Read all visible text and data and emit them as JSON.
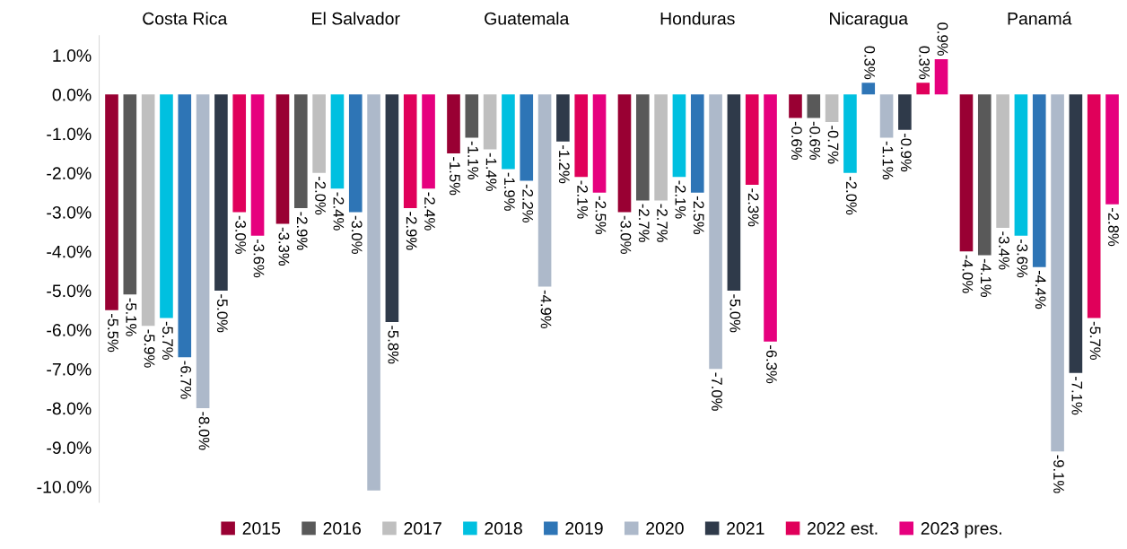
{
  "chart_data": {
    "type": "bar",
    "categories": [
      "Costa Rica",
      "El Salvador",
      "Guatemala",
      "Honduras",
      "Nicaragua",
      "Panamá"
    ],
    "series": [
      {
        "name": "2015",
        "color": "#990033",
        "values": [
          -5.5,
          -3.3,
          -1.5,
          -3.0,
          -0.6,
          -4.0
        ],
        "value_labels": [
          "-5.5%",
          "-3.3%",
          "-1.5%",
          "-3.0%",
          "-0.6%",
          "-4.0%"
        ]
      },
      {
        "name": "2016",
        "color": "#595959",
        "values": [
          -5.1,
          -2.9,
          -1.1,
          -2.7,
          -0.6,
          -4.1
        ],
        "value_labels": [
          "-5.1%",
          "-2.9%",
          "-1.1%",
          "-2.7%",
          "-0.6%",
          "-4.1%"
        ]
      },
      {
        "name": "2017",
        "color": "#bfbfbf",
        "values": [
          -5.9,
          -2.0,
          -1.4,
          -2.7,
          -0.7,
          -3.4
        ],
        "value_labels": [
          "-5.9%",
          "-2.0%",
          "-1.4%",
          "-2.7%",
          "-0.7%",
          "-3.4%"
        ]
      },
      {
        "name": "2018",
        "color": "#00c0e0",
        "values": [
          -5.7,
          -2.4,
          -1.9,
          -2.1,
          -2.0,
          -3.6
        ],
        "value_labels": [
          "-5.7%",
          "-2.4%",
          "-1.9%",
          "-2.1%",
          "-2.0%",
          "-3.6%"
        ]
      },
      {
        "name": "2019",
        "color": "#2e75b6",
        "values": [
          -6.7,
          -3.0,
          -2.2,
          -2.5,
          0.3,
          -4.4
        ],
        "value_labels": [
          "-6.7%",
          "-3.0%",
          "-2.2%",
          "-2.5%",
          "0.3%",
          "-4.4%"
        ]
      },
      {
        "name": "2020",
        "color": "#adb9ca",
        "values": [
          -8.0,
          -10.1,
          -4.9,
          -7.0,
          -1.1,
          -9.1
        ],
        "value_labels": [
          "-8.0%",
          null,
          "-4.9%",
          "-7.0%",
          "-1.1%",
          "-9.1%"
        ]
      },
      {
        "name": "2021",
        "color": "#2f3a4a",
        "values": [
          -5.0,
          -5.8,
          -1.2,
          -5.0,
          -0.9,
          -7.1
        ],
        "value_labels": [
          "-5.0%",
          "-5.8%",
          "-1.2%",
          "-5.0%",
          "-0.9%",
          "-7.1%"
        ]
      },
      {
        "name": "2022 est.",
        "color": "#e0005a",
        "values": [
          -3.0,
          -2.9,
          -2.1,
          -2.3,
          0.3,
          -5.7
        ],
        "value_labels": [
          "-3.0%",
          "-2.9%",
          "-2.1%",
          "-2.3%",
          "0.3%",
          "-5.7%"
        ]
      },
      {
        "name": "2023 pres.",
        "color": "#e6007e",
        "values": [
          -3.6,
          -2.4,
          -2.5,
          -6.3,
          0.9,
          -2.8
        ],
        "value_labels": [
          "-3.6%",
          "-2.4%",
          "-2.5%",
          "-6.3%",
          "0.9%",
          "-2.8%"
        ]
      }
    ],
    "ylim": [
      -10.4,
      1.5
    ],
    "yticks": [
      {
        "value": -10,
        "label": "-10.0%"
      },
      {
        "value": -9,
        "label": "-9.0%"
      },
      {
        "value": -8,
        "label": "-8.0%"
      },
      {
        "value": -7,
        "label": "-7.0%"
      },
      {
        "value": -6,
        "label": "-6.0%"
      },
      {
        "value": -5,
        "label": "-5.0%"
      },
      {
        "value": -4,
        "label": "-4.0%"
      },
      {
        "value": -3,
        "label": "-3.0%"
      },
      {
        "value": -2,
        "label": "-2.0%"
      },
      {
        "value": -1,
        "label": "-1.0%"
      },
      {
        "value": 0,
        "label": "0.0%"
      },
      {
        "value": 1,
        "label": "1.0%"
      }
    ],
    "grid": false,
    "legend": "bottom"
  }
}
